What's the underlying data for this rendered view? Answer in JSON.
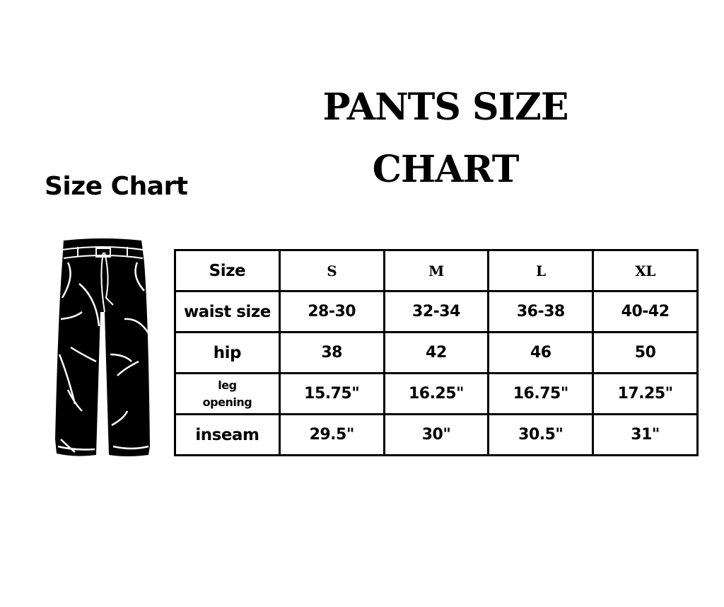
{
  "title_line1": "PANTS SIZE",
  "title_line2": "CHART",
  "subtitle": "Size Chart",
  "illustration": "pants-icon",
  "table": {
    "header": [
      "Size",
      "S",
      "M",
      "L",
      "XL"
    ],
    "rows": [
      [
        "waist size",
        "28-30",
        "32-34",
        "36-38",
        "40-42"
      ],
      [
        "hip",
        "38",
        "42",
        "46",
        "50"
      ],
      [
        "leg opening",
        "15.75\"",
        "16.25\"",
        "16.75\"",
        "17.25\""
      ],
      [
        "inseam",
        "29.5\"",
        "30\"",
        "30.5\"",
        "31\""
      ]
    ]
  }
}
